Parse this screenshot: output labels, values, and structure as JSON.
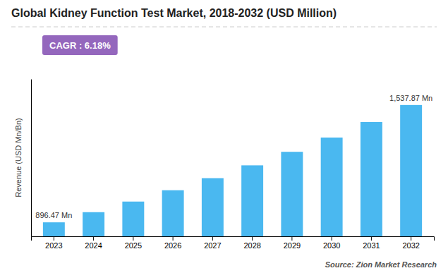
{
  "chart_data": {
    "type": "bar",
    "title": "Global Kidney Function Test Market, 2018-2032 (USD Million)",
    "subtitle": "CAGR : 6.18%",
    "source": "Source: Zion Market Research",
    "y_label": "Revenue (USD Mn/Bn)",
    "categories": [
      "2023",
      "2024",
      "2025",
      "2026",
      "2027",
      "2028",
      "2029",
      "2030",
      "2031",
      "2032"
    ],
    "values": [
      896.47,
      952.0,
      1010.0,
      1072.0,
      1138.0,
      1208.0,
      1282.0,
      1360.0,
      1445.0,
      1537.87
    ],
    "color": "#4ab8f0",
    "ylim": [
      820,
      1680
    ],
    "grid": false,
    "tick_labels": "x",
    "annotations": [
      {
        "text": "896.47 Mn",
        "x": "2023",
        "y": 896.47
      },
      {
        "text": "1,537.87 Mn",
        "x": "2032",
        "y": 1537.87
      }
    ]
  }
}
